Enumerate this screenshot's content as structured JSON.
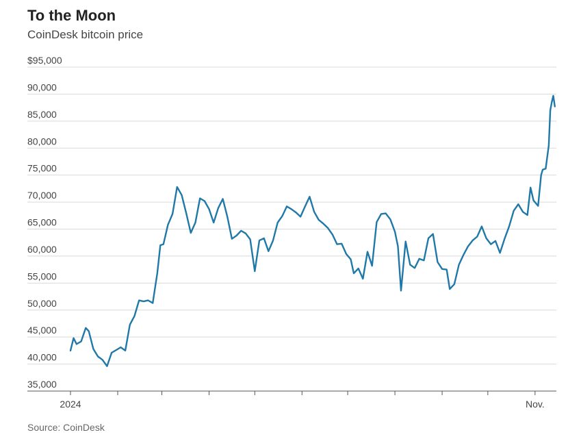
{
  "header": {
    "title": "To the Moon",
    "subtitle": "CoinDesk bitcoin price"
  },
  "footer": {
    "source": "Source: CoinDesk"
  },
  "colors": {
    "line": "#1f78a8",
    "grid": "#d9d9d9",
    "axis": "#555555"
  },
  "chart_data": {
    "type": "line",
    "title": "To the Moon",
    "subtitle": "CoinDesk bitcoin price",
    "xlabel": "",
    "ylabel": "",
    "x_range": [
      "2024-01-01",
      "2024-11-15"
    ],
    "ylim": [
      35000,
      95000
    ],
    "y_ticks": [
      35000,
      40000,
      45000,
      50000,
      55000,
      60000,
      65000,
      70000,
      75000,
      80000,
      85000,
      90000,
      95000
    ],
    "y_tick_labels": [
      "35,000",
      "40,000",
      "45,000",
      "50,000",
      "55,000",
      "60,000",
      "65,000",
      "70,000",
      "75,000",
      "80,000",
      "85,000",
      "90,000",
      "$95,000"
    ],
    "x_tick_dates": [
      "2024-01-01",
      "2024-02-01",
      "2024-03-01",
      "2024-04-01",
      "2024-05-01",
      "2024-06-01",
      "2024-07-01",
      "2024-08-01",
      "2024-09-01",
      "2024-10-01",
      "2024-11-01"
    ],
    "x_labels": [
      {
        "date": "2024-01-01",
        "label": "2024"
      },
      {
        "date": "2024-11-01",
        "label": "Nov."
      }
    ],
    "grid": true,
    "legend": "none",
    "series": [
      {
        "x": [
          "2024-01-01",
          "2024-01-03",
          "2024-01-05",
          "2024-01-08",
          "2024-01-11",
          "2024-01-13",
          "2024-01-16",
          "2024-01-19",
          "2024-01-22",
          "2024-01-25",
          "2024-01-28",
          "2024-01-31",
          "2024-02-03",
          "2024-02-06",
          "2024-02-09",
          "2024-02-12",
          "2024-02-15",
          "2024-02-18",
          "2024-02-21",
          "2024-02-24",
          "2024-02-27",
          "2024-02-29",
          "2024-03-02",
          "2024-03-05",
          "2024-03-08",
          "2024-03-11",
          "2024-03-14",
          "2024-03-17",
          "2024-03-20",
          "2024-03-23",
          "2024-03-26",
          "2024-03-29",
          "2024-04-01",
          "2024-04-04",
          "2024-04-07",
          "2024-04-10",
          "2024-04-13",
          "2024-04-16",
          "2024-04-19",
          "2024-04-22",
          "2024-04-25",
          "2024-04-28",
          "2024-05-01",
          "2024-05-04",
          "2024-05-07",
          "2024-05-10",
          "2024-05-13",
          "2024-05-16",
          "2024-05-19",
          "2024-05-22",
          "2024-05-25",
          "2024-05-28",
          "2024-05-31",
          "2024-06-03",
          "2024-06-06",
          "2024-06-09",
          "2024-06-12",
          "2024-06-15",
          "2024-06-18",
          "2024-06-21",
          "2024-06-24",
          "2024-06-27",
          "2024-06-30",
          "2024-07-03",
          "2024-07-05",
          "2024-07-08",
          "2024-07-11",
          "2024-07-14",
          "2024-07-17",
          "2024-07-20",
          "2024-07-23",
          "2024-07-26",
          "2024-07-29",
          "2024-08-01",
          "2024-08-03",
          "2024-08-05",
          "2024-08-08",
          "2024-08-11",
          "2024-08-14",
          "2024-08-17",
          "2024-08-20",
          "2024-08-23",
          "2024-08-26",
          "2024-08-29",
          "2024-09-01",
          "2024-09-04",
          "2024-09-06",
          "2024-09-09",
          "2024-09-12",
          "2024-09-15",
          "2024-09-18",
          "2024-09-21",
          "2024-09-24",
          "2024-09-27",
          "2024-09-30",
          "2024-10-03",
          "2024-10-06",
          "2024-10-09",
          "2024-10-12",
          "2024-10-15",
          "2024-10-18",
          "2024-10-21",
          "2024-10-24",
          "2024-10-27",
          "2024-10-29",
          "2024-10-31",
          "2024-11-03",
          "2024-11-05",
          "2024-11-06",
          "2024-11-08",
          "2024-11-10",
          "2024-11-11",
          "2024-11-12",
          "2024-11-13",
          "2024-11-14"
        ],
        "values": [
          42500,
          44800,
          43700,
          44200,
          46700,
          46100,
          42800,
          41400,
          40800,
          39600,
          42100,
          42600,
          43100,
          42500,
          47300,
          48900,
          51800,
          51600,
          51800,
          51300,
          56900,
          62000,
          62200,
          65800,
          67800,
          72800,
          71300,
          67900,
          64300,
          66200,
          70700,
          70200,
          68700,
          66200,
          68900,
          70600,
          67300,
          63200,
          63800,
          64700,
          64200,
          63100,
          57200,
          62900,
          63300,
          60900,
          62900,
          66200,
          67400,
          69200,
          68700,
          68100,
          67300,
          69200,
          71000,
          68200,
          66700,
          66000,
          65200,
          64000,
          62200,
          62300,
          60400,
          59400,
          56800,
          57700,
          55800,
          60800,
          58200,
          66300,
          67800,
          67900,
          66800,
          64500,
          61800,
          53600,
          62700,
          58400,
          57800,
          59500,
          59200,
          63300,
          64100,
          58900,
          57600,
          57500,
          53900,
          54800,
          58400,
          60200,
          61800,
          62900,
          63600,
          65500,
          63300,
          62200,
          62800,
          60600,
          63200,
          65500,
          68400,
          69600,
          68200,
          67600,
          72700,
          70300,
          69300,
          75000,
          76000,
          76200,
          80500,
          87000,
          88500,
          89700,
          87700
        ]
      }
    ]
  }
}
